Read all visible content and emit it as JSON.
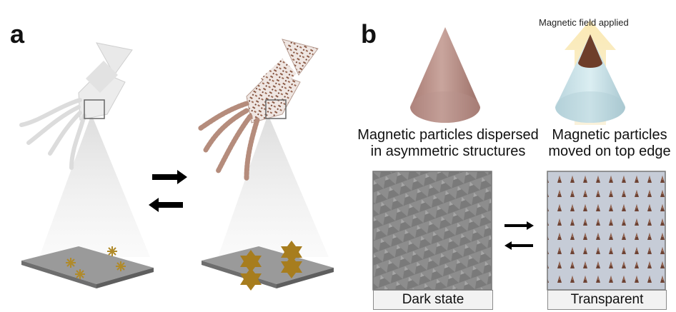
{
  "panel_a": {
    "letter": "a"
  },
  "panel_b": {
    "letter": "b",
    "field_label": "Magnetic field applied",
    "caption_left": [
      "Magnetic particles dispersed",
      "in asymmetric structures"
    ],
    "caption_right": [
      "Magnetic particles",
      "moved on top edge"
    ],
    "state_left": "Dark state",
    "state_right": "Transparent"
  },
  "colors": {
    "squid_plain": "#e6e6e6",
    "particle": "#8b5a45",
    "platform": "#8f8f8f",
    "star_gold": "#a77d1e",
    "cone_brown": "#b58a82",
    "field_arrow": "#f7e3a4",
    "cone_tip": "#6e3e2a",
    "cone_blue": "#c8dfe6",
    "dark_state": "#8a8a8a",
    "transparent_state": "#c3cad5"
  }
}
